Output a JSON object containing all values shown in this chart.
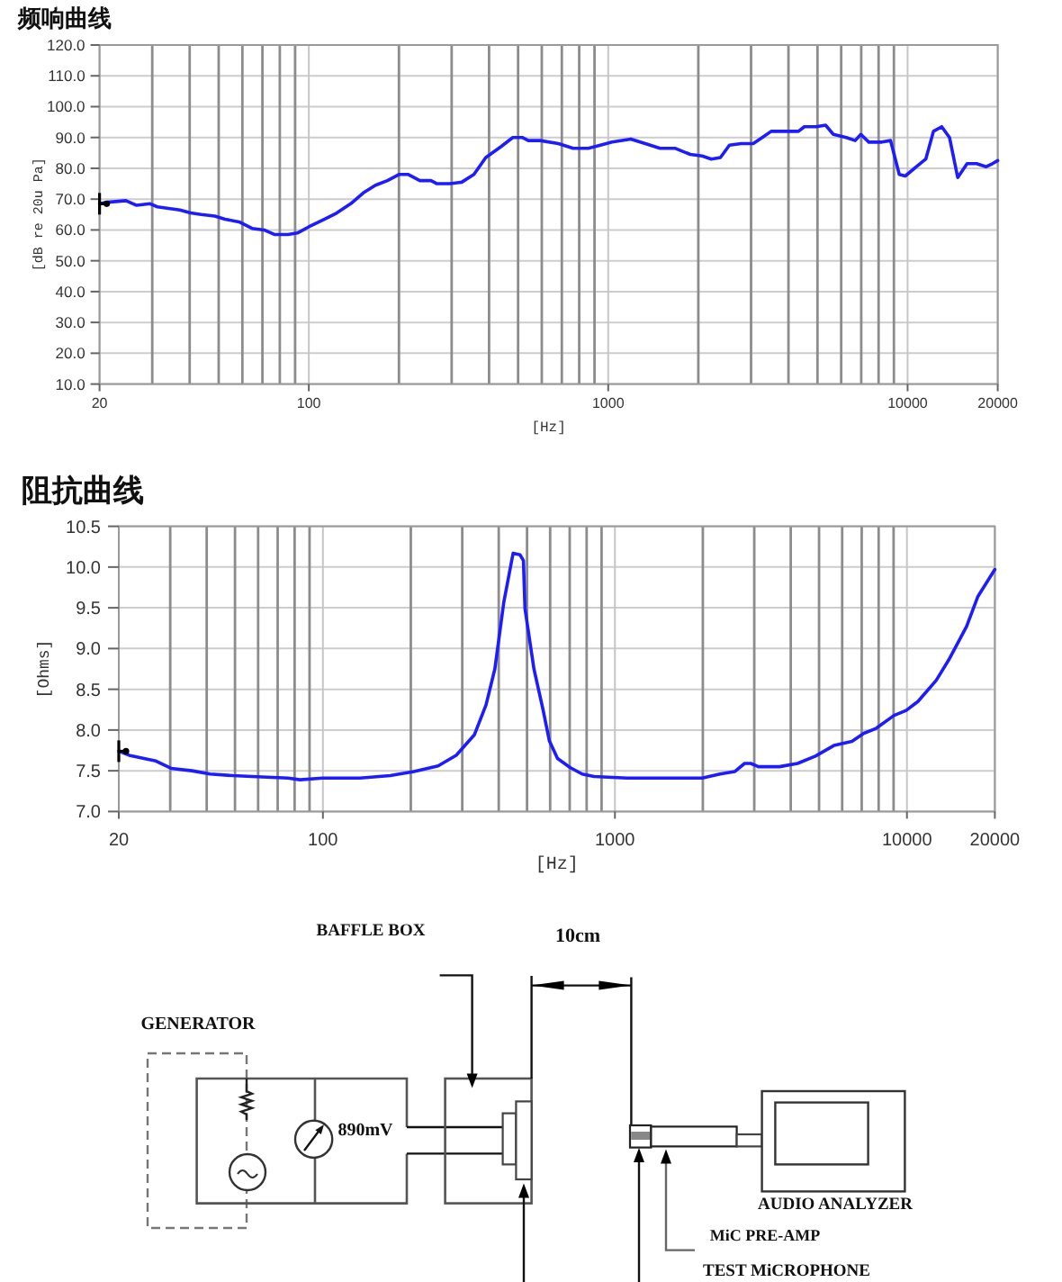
{
  "chart_data": [
    {
      "type": "line",
      "title": "频响曲线",
      "xlabel": "[Hz]",
      "ylabel": "[dB re 20u Pa]",
      "log": "x",
      "color": "#1c1cff",
      "grid": true,
      "xlim": [
        20,
        20000
      ],
      "ylim": [
        10,
        120
      ],
      "xticks": [
        20,
        {
          "value": 30,
          "label": null
        },
        {
          "value": 40,
          "label": null
        },
        {
          "value": 50,
          "label": null
        },
        {
          "value": 60,
          "label": null
        },
        {
          "value": 70,
          "label": null
        },
        {
          "value": 80,
          "label": null
        },
        {
          "value": 90,
          "label": null
        },
        100,
        {
          "value": 200,
          "label": null
        },
        {
          "value": 300,
          "label": null
        },
        {
          "value": 400,
          "label": null
        },
        {
          "value": 500,
          "label": null
        },
        {
          "value": 600,
          "label": null
        },
        {
          "value": 700,
          "label": null
        },
        {
          "value": 800,
          "label": null
        },
        {
          "value": 900,
          "label": null
        },
        1000,
        {
          "value": 2000,
          "label": null
        },
        {
          "value": 3000,
          "label": null
        },
        {
          "value": 4000,
          "label": null
        },
        {
          "value": 5000,
          "label": null
        },
        {
          "value": 6000,
          "label": null
        },
        {
          "value": 7000,
          "label": null
        },
        {
          "value": 8000,
          "label": null
        },
        {
          "value": 9000,
          "label": null
        },
        10000,
        20000
      ],
      "yticks": [
        {
          "value": 10,
          "label": "10.0"
        },
        {
          "value": 20,
          "label": "20.0"
        },
        {
          "value": 30,
          "label": "30.0"
        },
        {
          "value": 40,
          "label": "40.0"
        },
        {
          "value": 50,
          "label": "50.0"
        },
        {
          "value": 60,
          "label": "60.0"
        },
        {
          "value": 70,
          "label": "70.0"
        },
        {
          "value": 80,
          "label": "80.0"
        },
        {
          "value": 90,
          "label": "90.0"
        },
        {
          "value": 100,
          "label": "100.0"
        },
        {
          "value": 110,
          "label": "110.0"
        },
        {
          "value": 120,
          "label": "120.0"
        }
      ],
      "x": [
        20,
        21.3,
        24.5,
        26.6,
        29.5,
        31.2,
        37.1,
        40.3,
        43.7,
        48.5,
        52.5,
        58.9,
        64.6,
        70.9,
        77,
        85.2,
        91.6,
        100,
        113,
        124,
        138,
        152,
        167,
        183,
        200,
        215,
        235,
        256,
        268,
        296,
        324,
        356,
        390,
        438,
        480,
        516,
        541,
        592,
        682,
        764,
        858,
        942,
        1030,
        1190,
        1330,
        1490,
        1670,
        1880,
        2060,
        2210,
        2370,
        2540,
        2780,
        3050,
        3270,
        3500,
        3940,
        4320,
        4520,
        4960,
        5320,
        5650,
        6240,
        6680,
        6980,
        7420,
        8200,
        8770,
        9380,
        9820,
        10700,
        11500,
        12200,
        13000,
        13800,
        14700,
        15800,
        17000,
        18300,
        19200,
        20000
      ],
      "values": [
        68.5,
        69,
        69.5,
        68,
        68.5,
        67.5,
        66.5,
        65.5,
        65,
        64.5,
        63.5,
        62.5,
        60.5,
        60,
        58.5,
        58.5,
        59,
        61,
        63.5,
        65.5,
        68.5,
        72,
        74.5,
        76,
        78,
        78,
        76,
        76,
        75,
        75,
        75.5,
        78,
        83.5,
        87,
        90,
        90,
        89,
        89,
        88,
        86.5,
        86.5,
        87.5,
        88.5,
        89.5,
        88,
        86.5,
        86.5,
        84.5,
        84,
        83,
        83.5,
        87.5,
        88,
        88,
        90,
        92,
        92,
        92,
        93.5,
        93.5,
        94,
        91,
        90,
        89,
        91,
        88.5,
        88.5,
        89,
        78,
        77.5,
        80.5,
        83,
        92,
        93.5,
        90,
        77,
        81.5,
        81.5,
        80.5,
        81.5,
        82.5
      ]
    },
    {
      "type": "line",
      "title": "阻抗曲线",
      "xlabel": "[Hz]",
      "ylabel": "[Ohms]",
      "log": "x",
      "color": "#1c1cff",
      "grid": true,
      "xlim": [
        20,
        20000
      ],
      "ylim": [
        7,
        10.5
      ],
      "xticks": [
        20,
        {
          "value": 30,
          "label": null
        },
        {
          "value": 40,
          "label": null
        },
        {
          "value": 50,
          "label": null
        },
        {
          "value": 60,
          "label": null
        },
        {
          "value": 70,
          "label": null
        },
        {
          "value": 80,
          "label": null
        },
        {
          "value": 90,
          "label": null
        },
        100,
        {
          "value": 200,
          "label": null
        },
        {
          "value": 300,
          "label": null
        },
        {
          "value": 400,
          "label": null
        },
        {
          "value": 500,
          "label": null
        },
        {
          "value": 600,
          "label": null
        },
        {
          "value": 700,
          "label": null
        },
        {
          "value": 800,
          "label": null
        },
        {
          "value": 900,
          "label": null
        },
        1000,
        {
          "value": 2000,
          "label": null
        },
        {
          "value": 3000,
          "label": null
        },
        {
          "value": 4000,
          "label": null
        },
        {
          "value": 5000,
          "label": null
        },
        {
          "value": 6000,
          "label": null
        },
        {
          "value": 7000,
          "label": null
        },
        {
          "value": 8000,
          "label": null
        },
        {
          "value": 9000,
          "label": null
        },
        10000,
        20000
      ],
      "yticks": [
        {
          "value": 7,
          "label": "7.0"
        },
        7.5,
        {
          "value": 8,
          "label": "8.0"
        },
        8.5,
        {
          "value": 9,
          "label": "9.0"
        },
        9.5,
        {
          "value": 10,
          "label": "10.0"
        },
        10.5
      ],
      "x": [
        20,
        21.7,
        24.4,
        26.8,
        30.2,
        35.6,
        41.1,
        49.3,
        57,
        75.9,
        83.5,
        100,
        134,
        170,
        205,
        248,
        286,
        330,
        362,
        388,
        416,
        448,
        473,
        486,
        492,
        528,
        568,
        596,
        636,
        702,
        772,
        848,
        1100,
        1570,
        1990,
        2290,
        2570,
        2780,
        2920,
        3100,
        3660,
        4220,
        4860,
        5620,
        6480,
        7120,
        7840,
        9040,
        9940,
        10900,
        12600,
        13900,
        16000,
        17500,
        20000
      ],
      "values": [
        7.74,
        7.69,
        7.65,
        7.62,
        7.53,
        7.5,
        7.46,
        7.44,
        7.43,
        7.41,
        7.39,
        7.41,
        7.41,
        7.44,
        7.49,
        7.56,
        7.69,
        7.94,
        8.31,
        8.75,
        9.56,
        10.17,
        10.15,
        10.08,
        9.49,
        8.75,
        8.24,
        7.87,
        7.65,
        7.54,
        7.46,
        7.43,
        7.41,
        7.41,
        7.41,
        7.46,
        7.49,
        7.59,
        7.59,
        7.55,
        7.55,
        7.59,
        7.68,
        7.81,
        7.86,
        7.96,
        8.02,
        8.18,
        8.24,
        8.35,
        8.61,
        8.86,
        9.27,
        9.64,
        9.97
      ]
    },
    {
      "type": "other",
      "annotations": [
        "BAFFLE BOX",
        "10cm",
        "GENERATOR",
        "890mV",
        "AUDIO ANALYZER",
        "MiC PRE-AMP",
        "TEST MiCROPHONE"
      ]
    }
  ]
}
